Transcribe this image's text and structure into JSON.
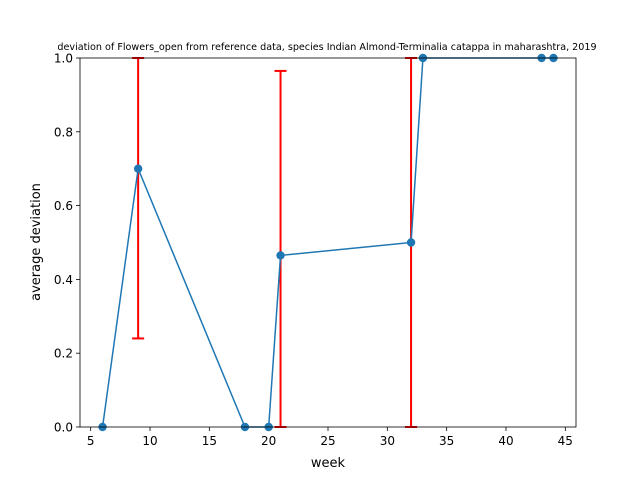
{
  "chart_data": {
    "type": "line",
    "title": "deviation of Flowers_open from reference data, species Indian Almond-Terminalia catappa in maharashtra, 2019",
    "xlabel": "week",
    "ylabel": "average deviation",
    "xlim": [
      4.1,
      45.9
    ],
    "ylim": [
      0,
      1
    ],
    "xticks": [
      5,
      10,
      15,
      20,
      25,
      30,
      35,
      40,
      45
    ],
    "yticks": [
      0.0,
      0.2,
      0.4,
      0.6,
      0.8,
      1.0
    ],
    "xtick_labels": [
      "5",
      "10",
      "15",
      "20",
      "25",
      "30",
      "35",
      "40",
      "45"
    ],
    "ytick_labels": [
      "0.0",
      "0.2",
      "0.4",
      "0.6",
      "0.8",
      "1.0"
    ],
    "grid": false,
    "legend": "none",
    "colors": {
      "line": "#1f77b4",
      "errorbar": "#ff0000",
      "axes": "#000000"
    },
    "series": [
      {
        "x": [
          6,
          9,
          18,
          20,
          21,
          32,
          33,
          43,
          44
        ],
        "y": [
          0.0,
          0.7,
          0.0,
          0.0,
          0.465,
          0.5,
          1.0,
          1.0,
          1.0
        ]
      }
    ],
    "errorbars": [
      {
        "x": 9,
        "low": 0.24,
        "high": 1.0
      },
      {
        "x": 21,
        "low": 0.0,
        "high": 0.965
      },
      {
        "x": 32,
        "low": 0.0,
        "high": 1.0
      }
    ]
  }
}
